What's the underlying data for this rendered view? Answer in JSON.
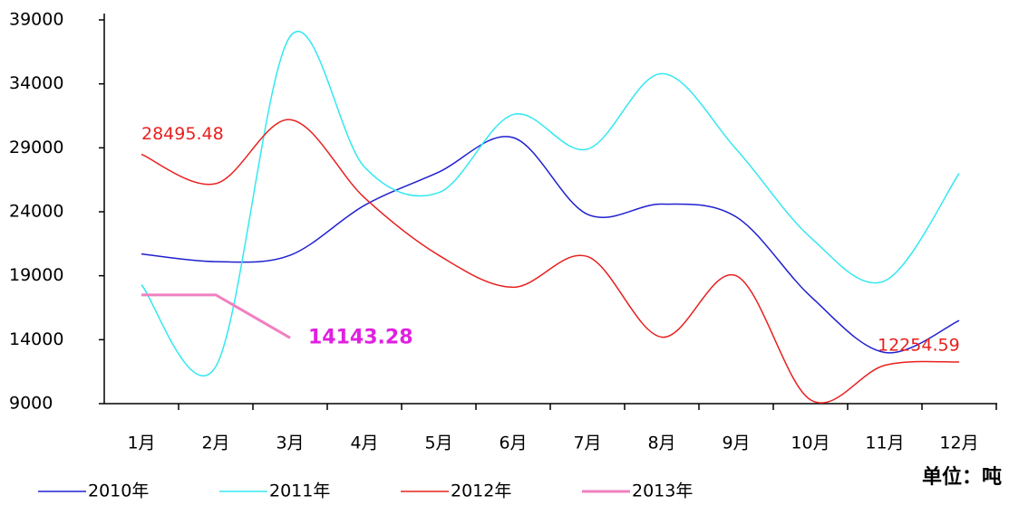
{
  "chart_data": {
    "type": "line",
    "categories": [
      "1月",
      "2月",
      "3月",
      "4月",
      "5月",
      "6月",
      "7月",
      "8月",
      "9月",
      "10月",
      "11月",
      "12月"
    ],
    "series": [
      {
        "name": "2010年",
        "color": "#2020d0",
        "smooth": true,
        "values": [
          20700,
          20100,
          20600,
          24500,
          27100,
          29800,
          23800,
          24600,
          23600,
          17400,
          13000,
          15500
        ]
      },
      {
        "name": "2011年",
        "color": "#33e8f0",
        "smooth": true,
        "values": [
          18300,
          11900,
          37700,
          27500,
          25500,
          31600,
          28900,
          34800,
          28900,
          22000,
          18600,
          27000
        ]
      },
      {
        "name": "2012年",
        "color": "#e82020",
        "smooth": true,
        "values": [
          28495.48,
          26200,
          31200,
          25100,
          20600,
          18100,
          20500,
          14200,
          19000,
          9300,
          12000,
          12254.59
        ]
      },
      {
        "name": "2013年",
        "color": "#f080c0",
        "smooth": false,
        "values": [
          17500,
          17500,
          14143.28,
          null,
          null,
          null,
          null,
          null,
          null,
          null,
          null,
          null
        ]
      }
    ],
    "data_labels": [
      {
        "series": 2,
        "index": 0,
        "color": "#e82020"
      },
      {
        "series": 2,
        "index": 11,
        "color": "#e82020"
      },
      {
        "series": 3,
        "index": 2,
        "color": "#e020e0",
        "bold": true
      }
    ],
    "ylim": [
      9000,
      39000
    ],
    "yticks": [
      9000,
      14000,
      19000,
      24000,
      29000,
      34000,
      39000
    ],
    "grid": false,
    "legend": "bottom-left",
    "annotation": "单位：吨"
  }
}
